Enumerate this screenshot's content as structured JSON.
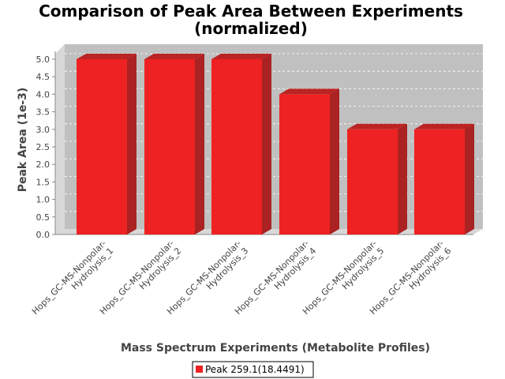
{
  "chart_data": {
    "type": "bar",
    "title_line1": "Comparison of Peak Area Between Experiments",
    "title_line2": "(normalized)",
    "xlabel": "Mass Spectrum Experiments (Metabolite Profiles)",
    "ylabel": "Peak Area (1e-3)",
    "ylim": [
      0,
      5.25
    ],
    "yticks": [
      "0.0",
      "0.5",
      "1.0",
      "1.5",
      "2.0",
      "2.5",
      "3.0",
      "3.5",
      "4.0",
      "4.5",
      "5.0"
    ],
    "categories": [
      [
        "Hops_GC-MS-Nonpolar-",
        "Hydrolysis_1"
      ],
      [
        "Hops_GC-MS-Nonpolar-",
        "Hydrolysis_2"
      ],
      [
        "Hops_GC-MS-Nonpolar-",
        "Hydrolysis_3"
      ],
      [
        "Hops_GC-MS-Nonpolar-",
        "Hydrolysis_4"
      ],
      [
        "Hops_GC-MS-Nonpolar-",
        "Hydrolysis_5"
      ],
      [
        "Hops_GC-MS-Nonpolar-",
        "Hydrolysis_6"
      ]
    ],
    "series": [
      {
        "name": "Peak 259.1(18.4491)",
        "color": "#ee2222",
        "values": [
          5.0,
          5.0,
          5.0,
          4.0,
          3.0,
          3.0
        ]
      }
    ],
    "grid": true,
    "legend_position": "bottom-center",
    "plot_background": "#c0c0c0"
  }
}
